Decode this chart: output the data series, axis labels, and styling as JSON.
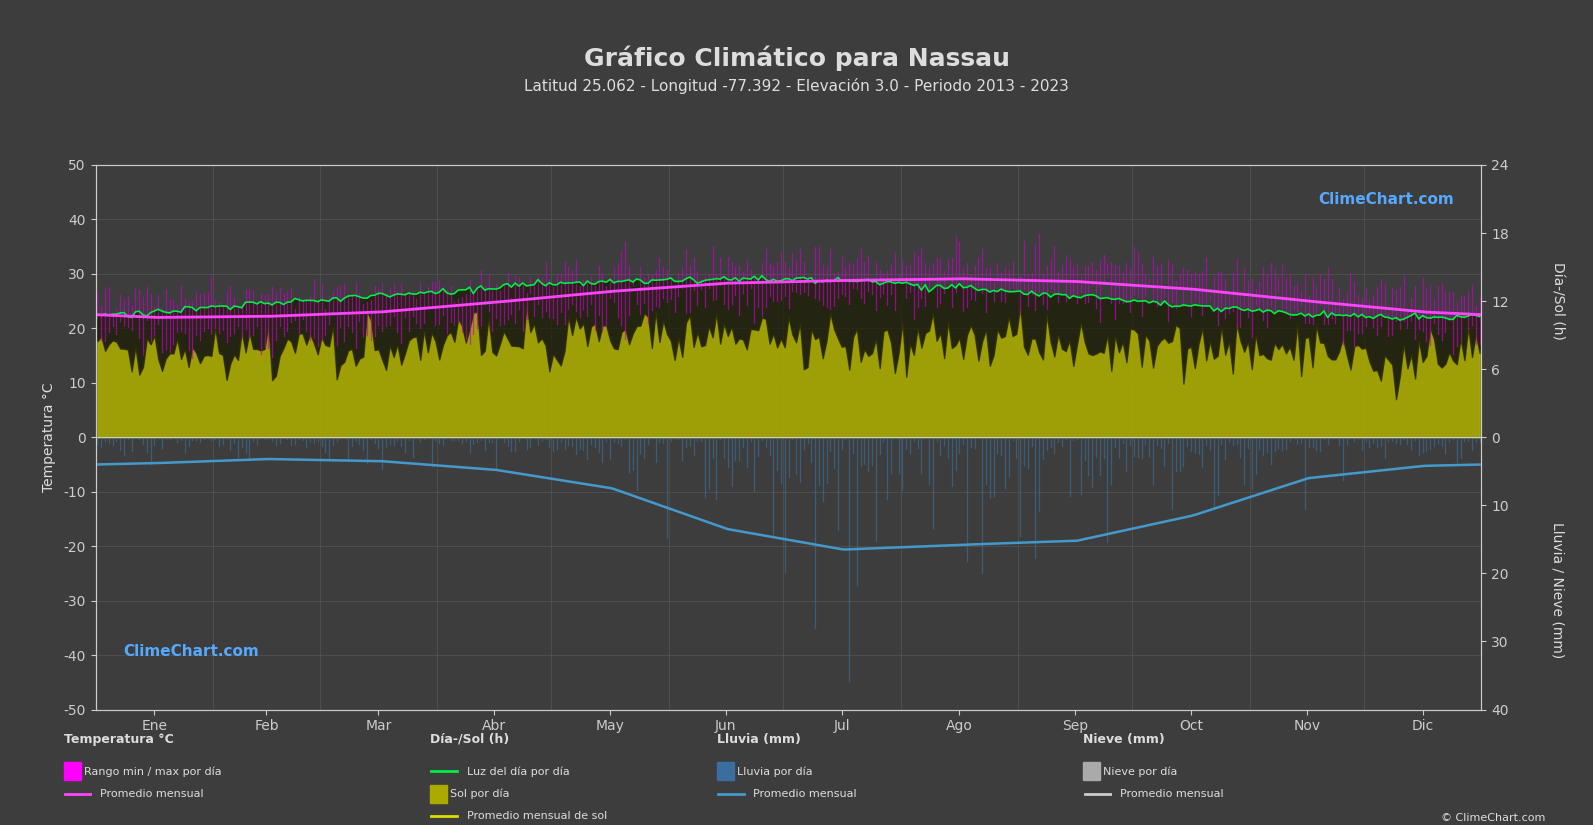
{
  "title": "Gráfico Climático para Nassau",
  "subtitle": "Latitud 25.062 - Longitud -77.392 - Elevación 3.0 - Periodo 2013 - 2023",
  "background_color": "#3d3d3d",
  "plot_bg_color": "#3d3d3d",
  "months": [
    "Ene",
    "Feb",
    "Mar",
    "Abr",
    "May",
    "Jun",
    "Jul",
    "Ago",
    "Sep",
    "Oct",
    "Nov",
    "Dic"
  ],
  "temp_ylim": [
    -50,
    50
  ],
  "temp_avg": [
    22.0,
    22.2,
    23.0,
    24.8,
    26.8,
    28.3,
    28.8,
    29.1,
    28.6,
    27.2,
    25.0,
    23.0
  ],
  "temp_max_avg": [
    25.5,
    26.0,
    27.0,
    28.5,
    30.5,
    31.5,
    32.0,
    32.5,
    32.0,
    30.5,
    28.0,
    26.5
  ],
  "temp_min_avg": [
    18.5,
    19.0,
    19.8,
    21.2,
    23.2,
    25.2,
    25.8,
    26.2,
    25.8,
    24.2,
    21.8,
    19.8
  ],
  "daylight_avg": [
    11.0,
    11.8,
    12.5,
    13.2,
    13.8,
    14.0,
    13.8,
    13.2,
    12.4,
    11.6,
    10.8,
    10.5
  ],
  "sunshine_avg": [
    7.2,
    7.8,
    8.2,
    8.8,
    9.2,
    8.8,
    8.5,
    8.8,
    7.8,
    8.2,
    7.2,
    6.8
  ],
  "rainfall_avg": [
    3.8,
    3.2,
    3.5,
    4.8,
    7.5,
    13.5,
    16.5,
    15.8,
    15.2,
    11.5,
    6.0,
    4.2
  ],
  "n_days": 365,
  "grid_color": "#555555",
  "temp_line_color": "#ff44ff",
  "temp_bar_color": "#cc00cc",
  "daylight_line_color": "#00ee44",
  "sunshine_fill_color": "#aaaa00",
  "sunshine_line_color": "#dddd00",
  "rain_bar_color": "#3a6e9e",
  "rain_line_color": "#4499cc",
  "snow_bar_color": "#aaaaaa",
  "snow_line_color": "#cccccc",
  "axis_color": "#cccccc",
  "text_color": "#dddddd",
  "title_fontsize": 18,
  "subtitle_fontsize": 11,
  "label_fontsize": 10,
  "tick_fontsize": 10,
  "sun_zero_at_temp": 0,
  "sun_max_at_temp": 50,
  "rain_zero_at_temp": 0,
  "rain_max_at_temp": -50,
  "sun_max_hours": 24,
  "rain_max_mm": 40
}
